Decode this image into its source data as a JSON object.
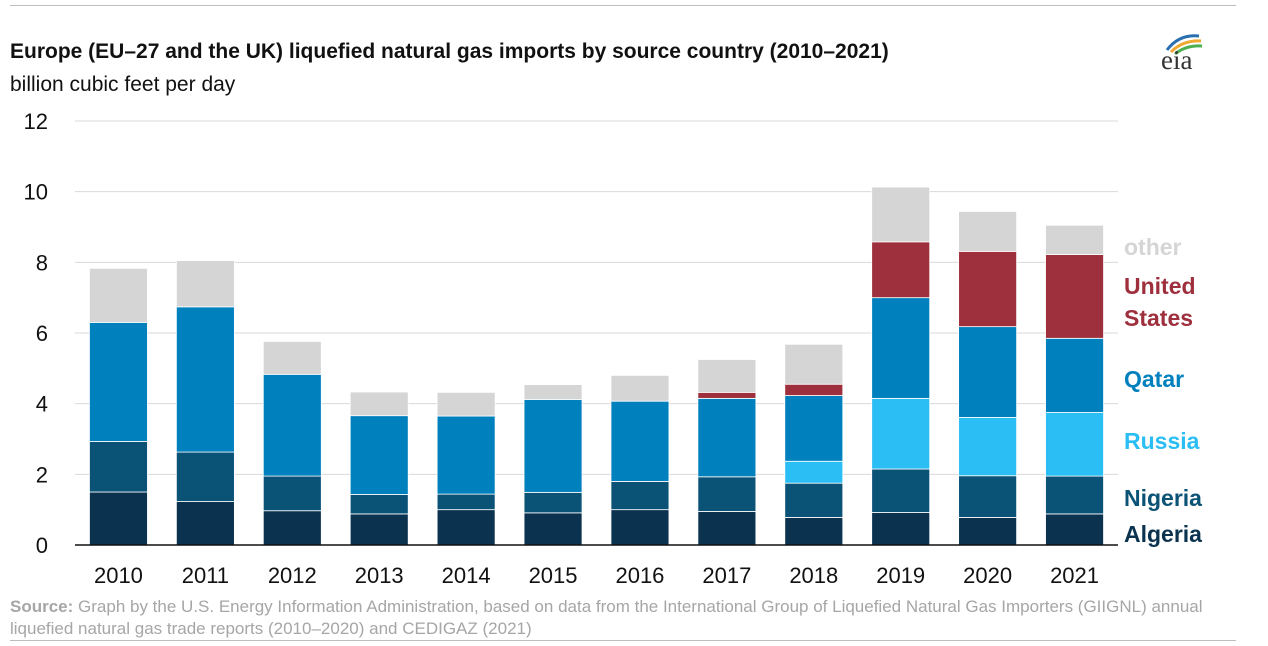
{
  "title": "Europe (EU–27 and the UK) liquefied natural gas imports by source country (2010–2021)",
  "subtitle": "billion cubic feet per day",
  "logo_text": "eia",
  "source_label": "Source:",
  "source_text": "Graph by the U.S. Energy Information Administration, based on data from the International Group of Liquefied Natural Gas Importers (GIIGNL) annual liquefied natural gas trade reports (2010–2020) and CEDIGAZ (2021)",
  "chart_data": {
    "type": "bar",
    "stacked": true,
    "categories": [
      "2010",
      "2011",
      "2012",
      "2013",
      "2014",
      "2015",
      "2016",
      "2017",
      "2018",
      "2019",
      "2020",
      "2021"
    ],
    "ylim": [
      0,
      12
    ],
    "yticks": [
      0,
      2,
      4,
      6,
      8,
      10,
      12
    ],
    "grid": true,
    "legend_placement": "right",
    "series": [
      {
        "name": "Algeria",
        "color": "#0b3350",
        "values": [
          1.5,
          1.23,
          0.97,
          0.88,
          1.0,
          0.91,
          1.0,
          0.95,
          0.78,
          0.92,
          0.78,
          0.88
        ]
      },
      {
        "name": "Nigeria",
        "color": "#0b5277",
        "values": [
          1.43,
          1.4,
          0.98,
          0.55,
          0.44,
          0.58,
          0.8,
          0.98,
          0.97,
          1.23,
          1.18,
          1.07
        ]
      },
      {
        "name": "Russia",
        "color": "#2bbef5",
        "values": [
          0.0,
          0.0,
          0.0,
          0.0,
          0.0,
          0.0,
          0.0,
          0.0,
          0.62,
          2.0,
          1.65,
          1.8
        ]
      },
      {
        "name": "Qatar",
        "color": "#0180be",
        "values": [
          3.37,
          4.11,
          2.88,
          2.23,
          2.21,
          2.63,
          2.27,
          2.22,
          1.86,
          2.85,
          2.57,
          2.1
        ]
      },
      {
        "name": "United States",
        "color": "#9e2f3c",
        "values": [
          0.0,
          0.0,
          0.0,
          0.0,
          0.0,
          0.0,
          0.0,
          0.17,
          0.32,
          1.58,
          2.13,
          2.37
        ]
      },
      {
        "name": "other",
        "color": "#d5d5d5",
        "values": [
          1.53,
          1.31,
          0.93,
          0.67,
          0.67,
          0.42,
          0.73,
          0.93,
          1.13,
          1.55,
          1.13,
          0.83
        ]
      }
    ]
  }
}
